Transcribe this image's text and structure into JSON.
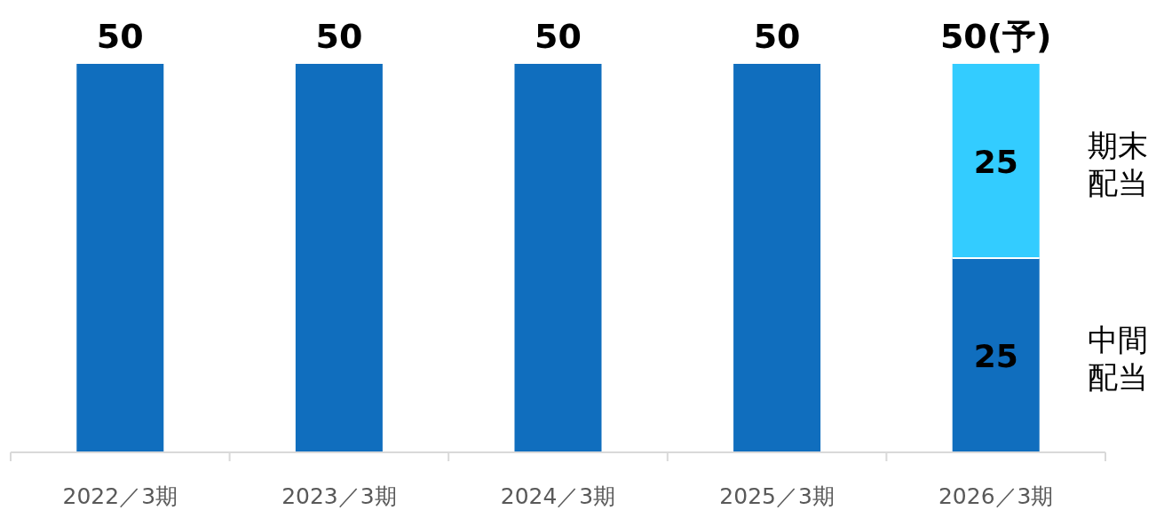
{
  "chart_data": {
    "type": "bar",
    "stacked": true,
    "categories": [
      "2022／3期",
      "2023／3期",
      "2024／3期",
      "2025／3期",
      "2026／3期"
    ],
    "series": [
      {
        "name": "中間配当",
        "color": "#106ebe",
        "values": [
          50,
          50,
          50,
          50,
          25
        ],
        "value_labels": [
          null,
          null,
          null,
          null,
          "25"
        ]
      },
      {
        "name": "期末配当",
        "color": "#33ccff",
        "values": [
          null,
          null,
          null,
          null,
          25
        ],
        "value_labels": [
          null,
          null,
          null,
          null,
          "25"
        ]
      }
    ],
    "totals": [
      "50",
      "50",
      "50",
      "50",
      "50(予)"
    ],
    "legend": false
  }
}
